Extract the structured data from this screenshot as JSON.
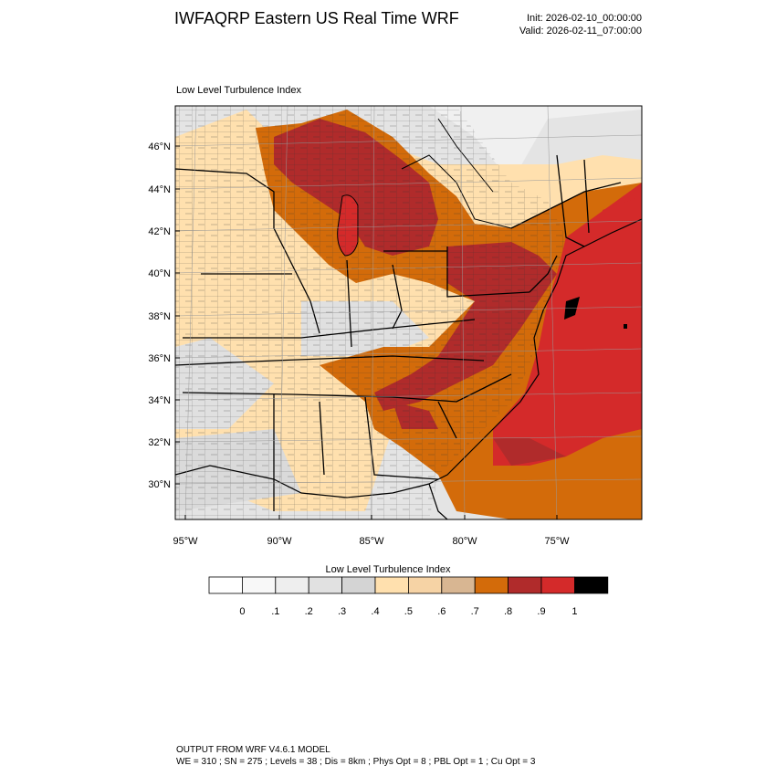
{
  "header": {
    "title": "IWFAQRP Eastern US Real Time WRF",
    "init": "Init: 2026-02-10_00:00:00",
    "valid": "Valid: 2026-02-11_07:00:00"
  },
  "map": {
    "subtitle": "Low Level Turbulence Index",
    "lat_labels": [
      "46°N",
      "44°N",
      "42°N",
      "40°N",
      "38°N",
      "36°N",
      "34°N",
      "32°N",
      "30°N"
    ],
    "lon_labels": [
      "95°W",
      "90°W",
      "85°W",
      "80°W",
      "75°W"
    ]
  },
  "colorbar": {
    "title": "Low Level Turbulence Index",
    "colors": [
      "#ffffff",
      "#f8f8f8",
      "#eeeeee",
      "#e1e1e1",
      "#d4d4d4",
      "#ffe0ae",
      "#f6d3a5",
      "#d8b692",
      "#d36b0a",
      "#b02b2b",
      "#d42a2a",
      "#000000"
    ],
    "labels": [
      "0",
      ".1",
      ".2",
      ".3",
      ".4",
      ".5",
      ".6",
      ".7",
      ".8",
      ".9",
      "1"
    ]
  },
  "footer": {
    "line1": "OUTPUT FROM WRF V4.6.1 MODEL",
    "line2": "WE = 310 ; SN = 275 ; Levels = 38 ; Dis = 8km ; Phys Opt = 8 ; PBL Opt = 1 ; Cu Opt = 3"
  }
}
